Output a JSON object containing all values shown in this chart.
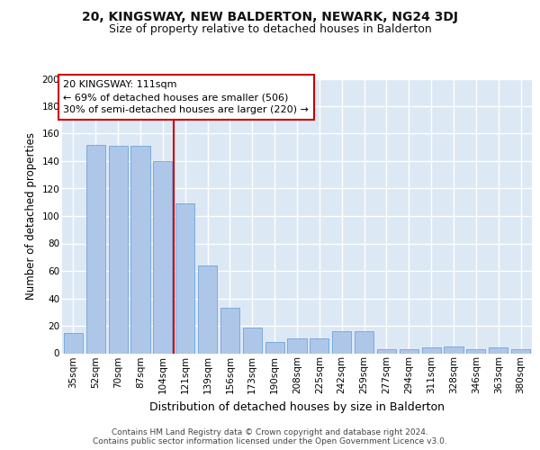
{
  "title": "20, KINGSWAY, NEW BALDERTON, NEWARK, NG24 3DJ",
  "subtitle": "Size of property relative to detached houses in Balderton",
  "xlabel": "Distribution of detached houses by size in Balderton",
  "ylabel": "Number of detached properties",
  "categories": [
    "35sqm",
    "52sqm",
    "70sqm",
    "87sqm",
    "104sqm",
    "121sqm",
    "139sqm",
    "156sqm",
    "173sqm",
    "190sqm",
    "208sqm",
    "225sqm",
    "242sqm",
    "259sqm",
    "277sqm",
    "294sqm",
    "311sqm",
    "328sqm",
    "346sqm",
    "363sqm",
    "380sqm"
  ],
  "values": [
    15,
    152,
    151,
    151,
    140,
    109,
    64,
    33,
    19,
    8,
    11,
    11,
    16,
    16,
    3,
    3,
    4,
    5,
    3,
    4,
    3
  ],
  "bar_color": "#aec6e8",
  "bar_edge_color": "#5b9bd5",
  "vline_index": 4.5,
  "vline_color": "#cc0000",
  "annotation_line1": "20 KINGSWAY: 111sqm",
  "annotation_line2": "← 69% of detached houses are smaller (506)",
  "annotation_line3": "30% of semi-detached houses are larger (220) →",
  "annotation_box_facecolor": "#ffffff",
  "annotation_box_edgecolor": "#cc0000",
  "ylim": [
    0,
    200
  ],
  "yticks": [
    0,
    20,
    40,
    60,
    80,
    100,
    120,
    140,
    160,
    180,
    200
  ],
  "bg_color": "#dde8f5",
  "grid_color": "#ffffff",
  "footer_line1": "Contains HM Land Registry data © Crown copyright and database right 2024.",
  "footer_line2": "Contains public sector information licensed under the Open Government Licence v3.0.",
  "title_fontsize": 10,
  "subtitle_fontsize": 9,
  "xlabel_fontsize": 9,
  "ylabel_fontsize": 8.5,
  "tick_fontsize": 7.5,
  "annotation_fontsize": 8,
  "footer_fontsize": 6.5
}
